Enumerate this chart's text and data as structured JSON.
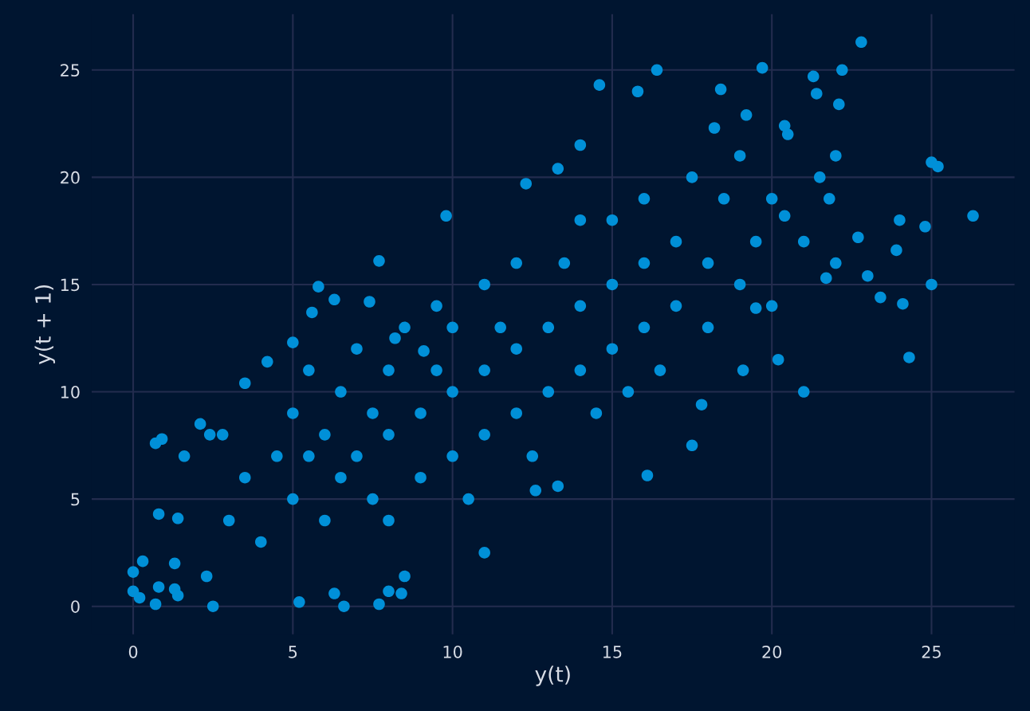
{
  "chart_data": {
    "type": "scatter",
    "xlabel": "y(t)",
    "ylabel": "y(t + 1)",
    "xlim": [
      -1.3,
      27.6
    ],
    "ylim": [
      -1.3,
      27.6
    ],
    "xticks": [
      0,
      5,
      10,
      15,
      20,
      25
    ],
    "yticks": [
      0,
      5,
      10,
      15,
      20,
      25
    ],
    "grid": true,
    "marker": "circle",
    "legend": false,
    "series": [
      {
        "color": "#0090d8",
        "x": [
          22.8,
          19.7,
          21.3,
          22.2,
          16.4,
          14.6,
          15.8,
          18.4,
          21.4,
          22.1,
          26.3,
          25.0,
          25.2,
          24.8,
          24.0,
          23.9,
          23.4,
          24.1,
          24.3,
          25.0,
          23.0,
          21.0,
          20.2,
          19.1,
          16.1,
          17.5,
          17.8,
          22.7,
          21.7,
          11.0,
          7.7,
          6.6,
          2.5,
          5.2,
          8.4,
          6.3,
          8.0,
          0,
          0,
          0.2,
          0.7,
          0.8,
          0.3,
          0.8,
          0.7,
          0.9,
          1.6,
          2.1,
          2.8,
          2.4,
          1.4,
          1.3,
          1.3,
          1.4,
          2.3,
          4.2,
          3.5,
          5.8,
          6.3,
          5.6,
          5.0,
          7.4,
          7.7,
          9.1,
          9.8,
          12.3,
          13.3,
          14.0,
          12.6,
          13.3,
          8.2,
          8.5,
          3,
          3.5,
          4,
          4.5,
          5,
          5,
          5.5,
          5.5,
          6,
          6,
          6.5,
          6.5,
          7,
          7,
          7.5,
          7.5,
          8,
          8,
          8,
          8.5,
          9,
          9,
          9.5,
          9.5,
          10,
          10,
          10,
          10.5,
          11,
          11,
          11,
          11.5,
          12,
          12,
          12,
          12.5,
          13,
          13,
          13.5,
          14,
          14,
          14,
          14.5,
          15,
          15,
          15,
          15.5,
          16,
          16,
          16,
          16.5,
          17,
          17,
          17.5,
          18,
          18,
          18.5,
          19,
          19,
          19.5,
          20,
          20,
          20.5,
          21,
          21.5,
          22,
          22,
          18.2,
          19.2,
          20.4,
          21.8,
          20.4,
          19.5
        ],
        "values": [
          26.3,
          25.1,
          24.7,
          25.0,
          25.0,
          24.3,
          24.0,
          24.1,
          23.9,
          23.4,
          18.2,
          20.7,
          20.5,
          17.7,
          18.0,
          16.6,
          14.4,
          14.1,
          11.6,
          15.0,
          15.4,
          10.0,
          11.5,
          11.0,
          6.1,
          7.5,
          9.4,
          17.2,
          15.3,
          2.5,
          0.1,
          0,
          0,
          0.2,
          0.6,
          0.6,
          0.7,
          1.6,
          0.7,
          0.4,
          0.1,
          0.9,
          2.1,
          4.3,
          7.6,
          7.8,
          7.0,
          8.5,
          8.0,
          8.0,
          4.1,
          2.0,
          0.8,
          0.5,
          1.4,
          11.4,
          10.4,
          14.9,
          14.3,
          13.7,
          12.3,
          14.2,
          16.1,
          11.9,
          18.2,
          19.7,
          20.4,
          21.5,
          5.4,
          5.6,
          12.5,
          1.4,
          4,
          6,
          3,
          7,
          5,
          9,
          7,
          11,
          4,
          8,
          6,
          10,
          7,
          12,
          5,
          9,
          8,
          11,
          4,
          13,
          9,
          6,
          11,
          14,
          10,
          7,
          13,
          5,
          11,
          15,
          8,
          13,
          12,
          9,
          16,
          7,
          13,
          10,
          16,
          14,
          11,
          18,
          9,
          15,
          12,
          18,
          10,
          16,
          13,
          19,
          11,
          17,
          14,
          20,
          16,
          13,
          19,
          15,
          21,
          17,
          19,
          14,
          22,
          17,
          20,
          16,
          21,
          22.3,
          22.9,
          22.4,
          19.0,
          18.2,
          13.9
        ]
      }
    ]
  }
}
